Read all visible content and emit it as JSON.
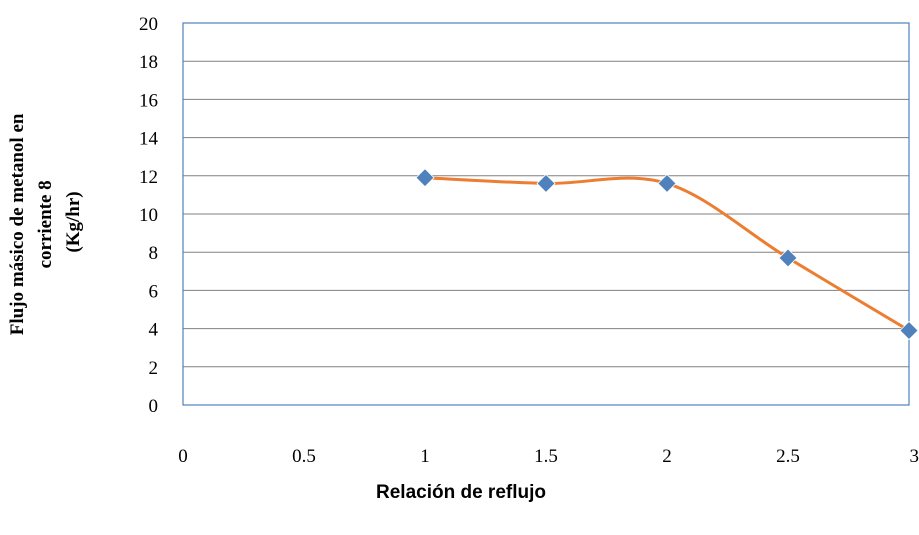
{
  "chart_data": {
    "type": "line",
    "title": "",
    "xlabel": "Relación de reflujo",
    "ylabel_lines": [
      "Flujo másico de metanol en",
      "corriente 8",
      "(Kg/hr)"
    ],
    "xlim": [
      0,
      3
    ],
    "ylim": [
      0,
      20
    ],
    "x_ticks": [
      0,
      0.5,
      1,
      1.5,
      2,
      2.5,
      3
    ],
    "x_tick_labels": [
      "0",
      "0.5",
      "1",
      "1.5",
      "2",
      "2.5",
      "3"
    ],
    "y_ticks": [
      0,
      2,
      4,
      6,
      8,
      10,
      12,
      14,
      16,
      18,
      20
    ],
    "y_tick_labels": [
      "0",
      "2",
      "4",
      "6",
      "8",
      "10",
      "12",
      "14",
      "16",
      "18",
      "20"
    ],
    "grid": "horizontal",
    "legend": "none",
    "series": [
      {
        "x": [
          1,
          1.5,
          2,
          2.5,
          3
        ],
        "y": [
          11.9,
          11.6,
          11.6,
          7.7,
          3.9
        ],
        "line_color": "#ED7D31",
        "marker_color": "#4F81BD",
        "marker": "diamond",
        "smooth": true
      }
    ]
  }
}
